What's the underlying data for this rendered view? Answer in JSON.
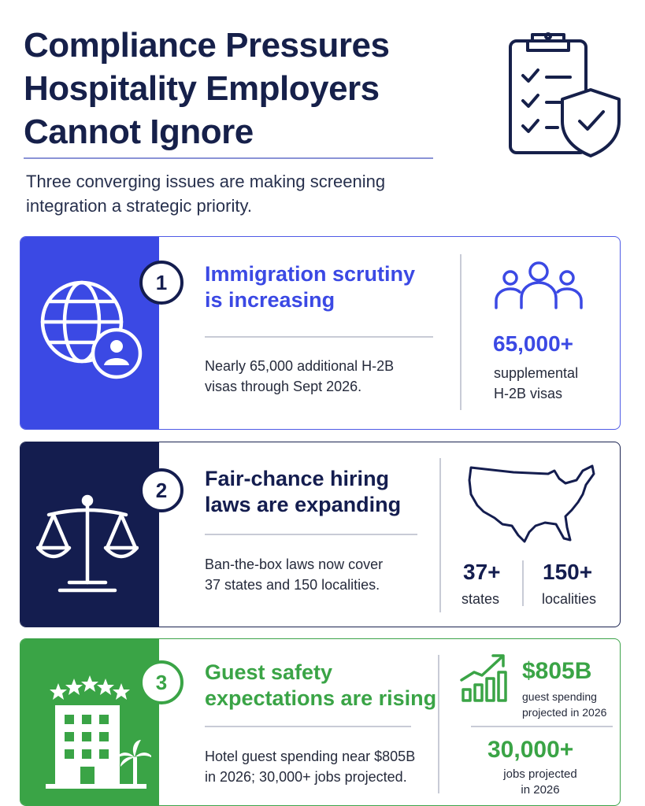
{
  "header": {
    "title_lines": [
      "Compliance Pressures",
      "Hospitality Employers",
      "Cannot Ignore"
    ],
    "subtitle_lines": [
      "Three converging issues are making screening",
      "integration a strategic priority."
    ],
    "hero_icon": "clipboard-checklist-shield-icon"
  },
  "colors": {
    "navy": "#141d4f",
    "blue": "#3b49e4",
    "green": "#3aa446"
  },
  "cards": [
    {
      "number": "1",
      "heading_lines": [
        "Immigration scrutiny",
        "is increasing"
      ],
      "description_lines": [
        "Nearly 65,000 additional H-2B",
        "visas through Sept 2026."
      ],
      "side_icon": "globe-user-icon",
      "stat_icon": "people-group-icon",
      "stat_value": "65,000+",
      "stat_label_lines": [
        "supplemental",
        "H-2B visas"
      ]
    },
    {
      "number": "2",
      "heading_lines": [
        "Fair-chance hiring",
        "laws are expanding"
      ],
      "description_lines": [
        "Ban-the-box laws now cover",
        "37 states and 150 localities."
      ],
      "side_icon": "scales-of-justice-icon",
      "stat_icon": "usa-map-icon",
      "stats": [
        {
          "value": "37+",
          "label": "states"
        },
        {
          "value": "150+",
          "label": "localities"
        }
      ]
    },
    {
      "number": "3",
      "heading_lines": [
        "Guest safety",
        "expectations are rising"
      ],
      "description_lines": [
        "Hotel guest spending near $805B",
        "in 2026; 30,000+ jobs projected."
      ],
      "side_icon": "hotel-palm-icon",
      "stat_icon": "growth-chart-icon",
      "stats": [
        {
          "value": "$805B",
          "label_lines": [
            "guest spending",
            "projected in 2026"
          ]
        },
        {
          "value": "30,000+",
          "label_lines": [
            "jobs projected",
            "in 2026"
          ]
        }
      ]
    }
  ]
}
